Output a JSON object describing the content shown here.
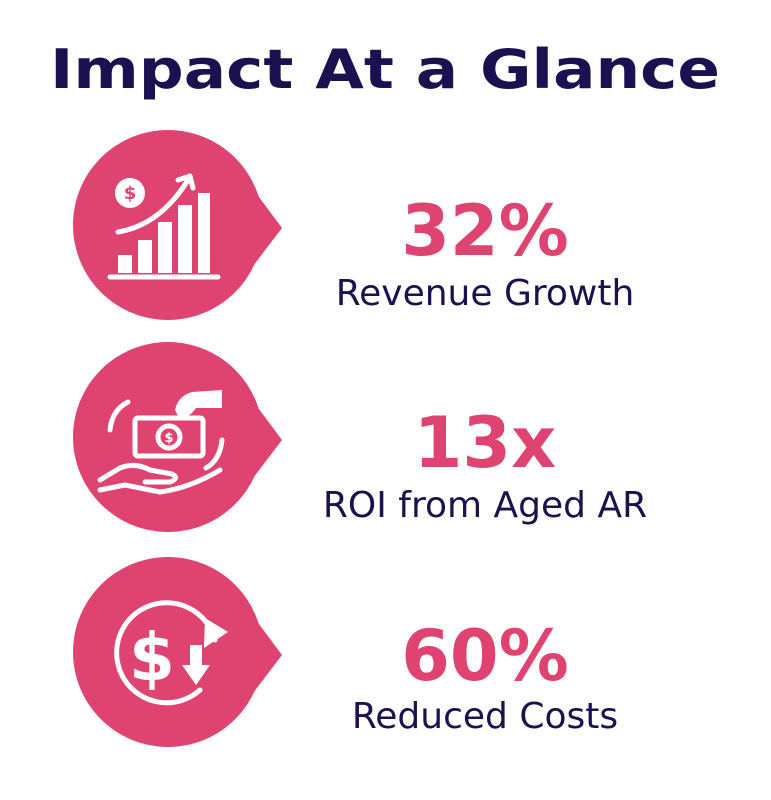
{
  "header": {
    "title": "Impact At a Glance"
  },
  "stats": [
    {
      "value": "32%",
      "label": "Revenue Growth"
    },
    {
      "value": "13x",
      "label": "ROI from Aged AR"
    },
    {
      "value": "60%",
      "label": "Reduced Costs"
    }
  ]
}
